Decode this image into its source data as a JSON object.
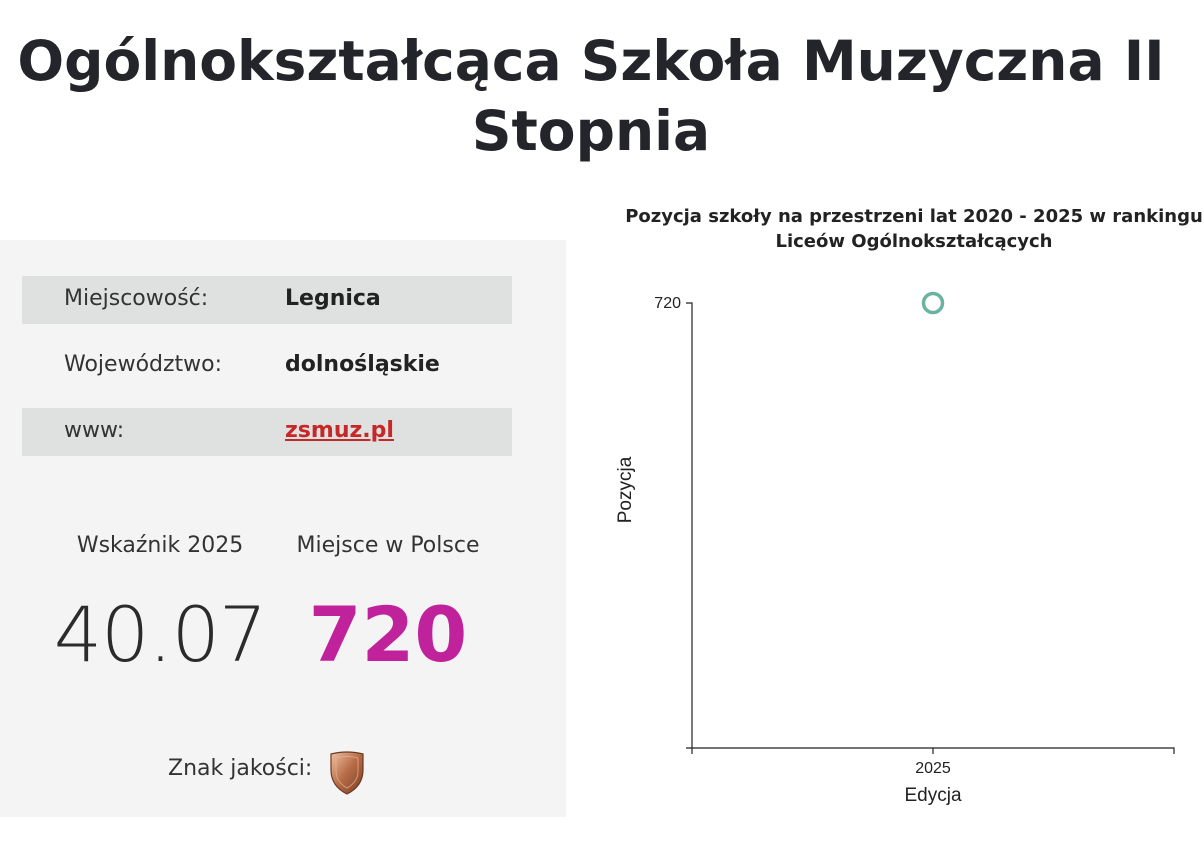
{
  "page": {
    "title": "Ogólnokształcąca Szkoła Muzyczna II Stopnia"
  },
  "info": {
    "rows": [
      {
        "label": "Miejscowość:",
        "value": "Legnica"
      },
      {
        "label": "Województwo:",
        "value": "dolnośląskie"
      },
      {
        "label": "www:",
        "value": "zsmuz.pl"
      }
    ]
  },
  "stats": {
    "index_label": "Wskaźnik 2025",
    "index_value": "40.07",
    "rank_label": "Miejsce w Polsce",
    "rank_value": "720",
    "rank_color": "#c0229b",
    "quality_label": "Znak jakości:",
    "quality_badge_icon": "bronze-shield-icon"
  },
  "chart_data": {
    "type": "scatter",
    "title": "Pozycja szkoły na przestrzeni lat 2020 - 2025 w rankingu Liceów Ogólnokształcących",
    "xlabel": "Edycja",
    "ylabel": "Pozycja",
    "x_ticks": [
      "2025"
    ],
    "y_ticks": [
      "720"
    ],
    "points": [
      {
        "x": 2025,
        "y": 720
      }
    ],
    "marker": "hollow-circle",
    "marker_color": "#69b3a2",
    "grid": false
  }
}
